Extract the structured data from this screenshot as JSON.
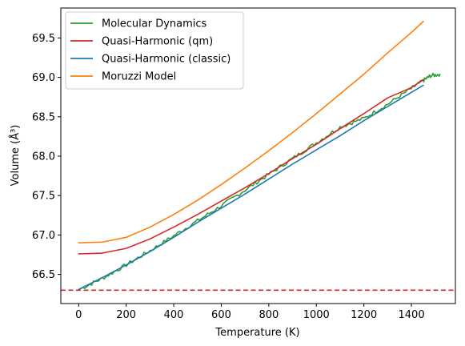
{
  "chart_data": {
    "type": "line",
    "title": "",
    "xlabel": "Temperature (K)",
    "ylabel": "Volume (Å³)",
    "xlim": [
      -75,
      1585
    ],
    "ylim": [
      66.13,
      69.88
    ],
    "xticks": [
      0,
      200,
      400,
      600,
      800,
      1000,
      1200,
      1400
    ],
    "yticks": [
      66.5,
      67.0,
      67.5,
      68.0,
      68.5,
      69.0,
      69.5
    ],
    "ytick_labels": [
      "66.5",
      "67.0",
      "67.5",
      "68.0",
      "68.5",
      "69.0",
      "69.5"
    ],
    "grid": false,
    "legend_position": "top-left",
    "series": [
      {
        "name": "Molecular Dynamics",
        "color": "#2ca02c",
        "noisy": true,
        "x": [
          10,
          100,
          200,
          300,
          400,
          500,
          600,
          700,
          800,
          900,
          1000,
          1100,
          1200,
          1300,
          1400,
          1450,
          1480,
          1520
        ],
        "y": [
          66.32,
          66.45,
          66.62,
          66.8,
          66.99,
          67.18,
          67.37,
          67.57,
          67.77,
          67.97,
          68.17,
          68.37,
          68.48,
          68.66,
          68.86,
          68.96,
          69.02,
          69.04
        ]
      },
      {
        "name": "Quasi-Harmonic (qm)",
        "color": "#d62728",
        "x": [
          0,
          100,
          200,
          300,
          400,
          500,
          600,
          700,
          800,
          900,
          1000,
          1100,
          1200,
          1300,
          1400,
          1450
        ],
        "y": [
          66.76,
          66.77,
          66.83,
          66.95,
          67.1,
          67.26,
          67.43,
          67.6,
          67.78,
          67.97,
          68.15,
          68.35,
          68.54,
          68.74,
          68.87,
          68.97
        ]
      },
      {
        "name": "Quasi-Harmonic (classic)",
        "color": "#1f77b4",
        "x": [
          0,
          100,
          200,
          300,
          400,
          500,
          600,
          700,
          800,
          900,
          1000,
          1100,
          1200,
          1300,
          1400,
          1450
        ],
        "y": [
          66.31,
          66.46,
          66.62,
          66.79,
          66.97,
          67.16,
          67.34,
          67.52,
          67.71,
          67.9,
          68.08,
          68.26,
          68.45,
          68.63,
          68.81,
          68.9
        ]
      },
      {
        "name": "Moruzzi Model",
        "color": "#ff7f0e",
        "x": [
          0,
          100,
          200,
          300,
          400,
          500,
          600,
          700,
          800,
          900,
          1000,
          1100,
          1200,
          1300,
          1400,
          1450
        ],
        "y": [
          66.9,
          66.91,
          66.97,
          67.1,
          67.26,
          67.44,
          67.64,
          67.85,
          68.07,
          68.3,
          68.54,
          68.79,
          69.04,
          69.31,
          69.57,
          69.71
        ]
      }
    ],
    "reference_lines": [
      {
        "orientation": "horizontal",
        "y": 66.3,
        "color": "#d62728",
        "style": "dashed"
      }
    ]
  }
}
